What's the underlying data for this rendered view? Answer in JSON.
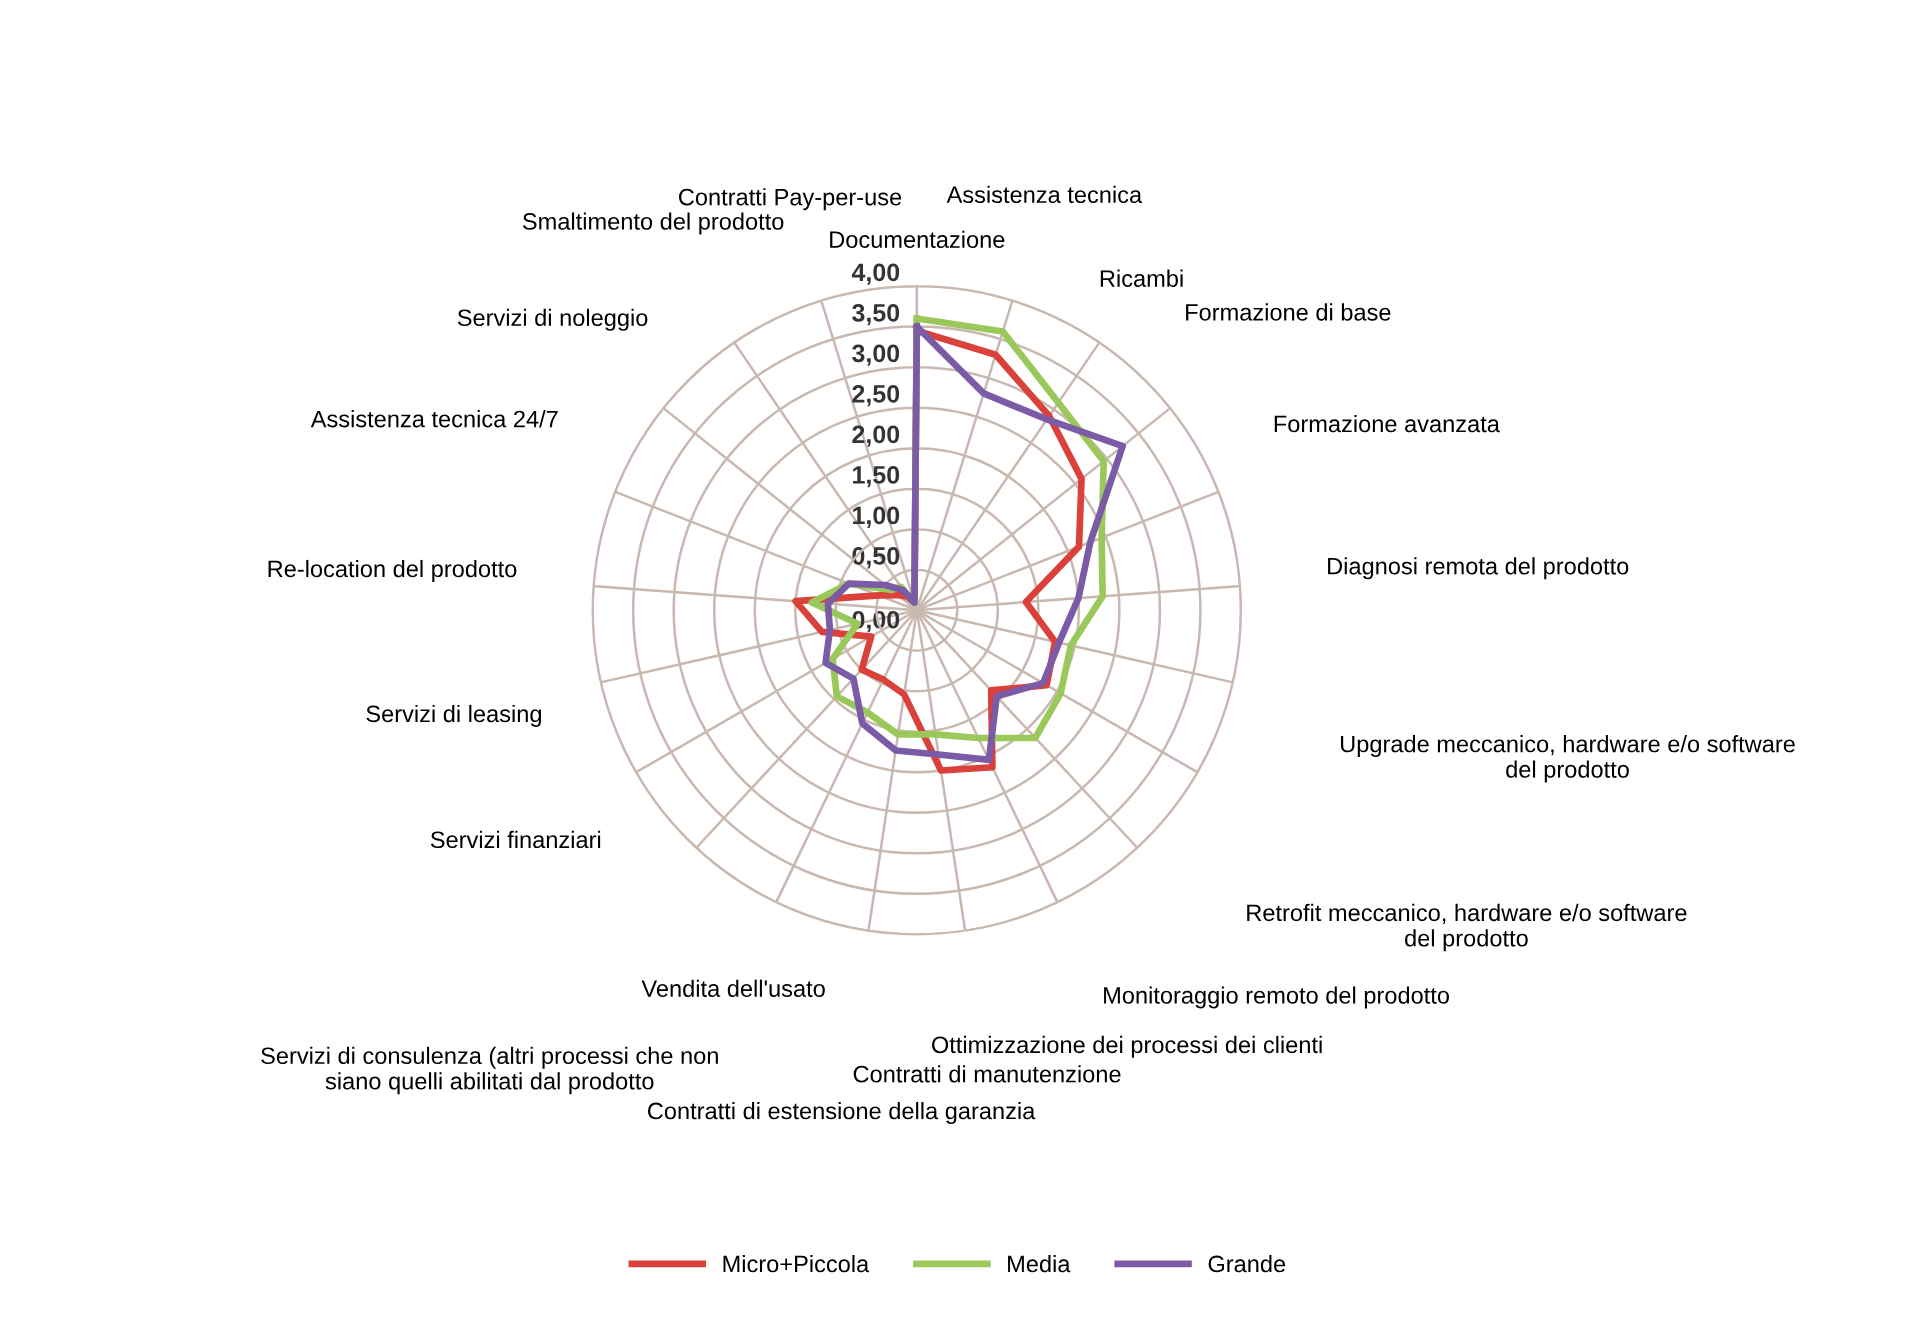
{
  "chart_data": {
    "type": "radar",
    "categories": [
      "Documentazione",
      "Assistenza tecnica",
      "Ricambi",
      "Formazione di base",
      "Formazione avanzata",
      "Diagnosi remota del prodotto",
      "Upgrade meccanico, hardware e/o software\ndel prodotto",
      "Retrofit meccanico, hardware e/o software\ndel prodotto",
      "Monitoraggio remoto del prodotto",
      "Ottimizzazione dei processi dei clienti",
      "Contratti di manutenzione",
      "Contratti di estensione della garanzia",
      "Vendita dell'usato",
      "Servizi di consulenza (altri processi che non\nsiano quelli abilitati dal prodotto",
      "Servizi finanziari",
      "Servizi di leasing",
      "Re-location del prodotto",
      "Assistenza tecnica 24/7",
      "Servizi di noleggio",
      "Smaltimento del prodotto",
      "Contratti Pay-per-use"
    ],
    "series": [
      {
        "name": "Micro+Piccola",
        "color": "#d9413a",
        "values": [
          3.45,
          3.3,
          2.9,
          2.6,
          2.15,
          1.35,
          1.75,
          1.85,
          1.35,
          2.15,
          2.0,
          1.05,
          0.95,
          1.0,
          0.65,
          1.2,
          1.5,
          0.5,
          0.3,
          0.2,
          0.1
        ]
      },
      {
        "name": "Media",
        "color": "#9bc85a",
        "values": [
          3.6,
          3.6,
          3.1,
          2.95,
          2.45,
          2.3,
          1.95,
          2.05,
          2.15,
          1.75,
          1.55,
          1.55,
          1.4,
          1.45,
          1.2,
          0.75,
          1.3,
          0.9,
          0.4,
          0.35,
          0.1
        ]
      },
      {
        "name": "Grande",
        "color": "#7b5aa6",
        "values": [
          3.5,
          2.8,
          2.85,
          3.25,
          2.3,
          2.0,
          1.8,
          1.8,
          1.45,
          2.05,
          1.8,
          1.75,
          1.55,
          1.15,
          1.3,
          1.1,
          1.1,
          0.9,
          0.5,
          0.3,
          0.1
        ]
      }
    ],
    "ylim": [
      0,
      4
    ],
    "yticks": [
      {
        "value": 0,
        "label": "0,00"
      },
      {
        "value": 0.5,
        "label": "0,50"
      },
      {
        "value": 1,
        "label": "1,00"
      },
      {
        "value": 1.5,
        "label": "1,50"
      },
      {
        "value": 2,
        "label": "2,00"
      },
      {
        "value": 2.5,
        "label": "2,50"
      },
      {
        "value": 3,
        "label": "3,00"
      },
      {
        "value": 3.5,
        "label": "3,50"
      },
      {
        "value": 4,
        "label": "4,00"
      }
    ],
    "grid": true,
    "legend": "bottom",
    "marker": "none",
    "line_style": "solid"
  }
}
